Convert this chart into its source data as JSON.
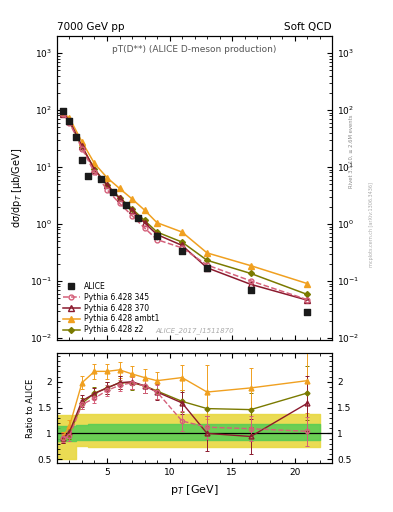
{
  "title_top_left": "7000 GeV pp",
  "title_top_right": "Soft QCD",
  "plot_title": "pT(D**) (ALICE D-meson production)",
  "watermark": "ALICE_2017_I1511870",
  "right_label1": "Rivet 3.1.10, ≥ 2.6M events",
  "right_label2": "mcplots.cern.ch [arXiv:1306.3436]",
  "xlabel": "p$_T$ [GeV]",
  "ylabel_main": "dσ/dp$_T$ [µb/GeV]",
  "ylabel_ratio": "Ratio to ALICE",
  "alice_x": [
    1.5,
    2.0,
    2.5,
    3.0,
    3.5,
    4.5,
    5.5,
    6.5,
    7.5,
    9.0,
    11.0,
    13.0,
    16.5,
    21.0
  ],
  "alice_y": [
    95.0,
    63.0,
    34.0,
    13.5,
    7.0,
    6.2,
    3.6,
    2.15,
    1.28,
    0.62,
    0.33,
    0.17,
    0.068,
    0.029
  ],
  "p345_x": [
    1.5,
    2.0,
    3.0,
    4.0,
    5.0,
    6.0,
    7.0,
    8.0,
    9.0,
    11.0,
    13.0,
    16.5,
    21.0
  ],
  "p345_y": [
    86.0,
    60.0,
    21.0,
    8.0,
    4.0,
    2.3,
    1.4,
    0.85,
    0.53,
    0.38,
    0.19,
    0.1,
    0.047
  ],
  "p370_x": [
    1.5,
    2.0,
    3.0,
    4.0,
    5.0,
    6.0,
    7.0,
    8.0,
    9.0,
    11.0,
    13.0,
    16.5,
    21.0
  ],
  "p370_y": [
    86.0,
    65.0,
    23.0,
    9.0,
    4.8,
    2.8,
    1.75,
    1.05,
    0.65,
    0.42,
    0.17,
    0.087,
    0.046
  ],
  "pambt1_x": [
    1.5,
    2.0,
    3.0,
    4.0,
    5.0,
    6.0,
    7.0,
    8.0,
    9.0,
    11.0,
    13.0,
    16.5,
    21.0
  ],
  "pambt1_y": [
    89.0,
    72.0,
    27.5,
    11.5,
    6.5,
    4.2,
    2.75,
    1.75,
    1.05,
    0.72,
    0.31,
    0.185,
    0.09
  ],
  "pz2_x": [
    1.5,
    2.0,
    3.0,
    4.0,
    5.0,
    6.0,
    7.0,
    8.0,
    9.0,
    11.0,
    13.0,
    16.5,
    21.0
  ],
  "pz2_y": [
    86.0,
    63.0,
    22.5,
    9.2,
    4.8,
    2.9,
    1.85,
    1.15,
    0.72,
    0.48,
    0.23,
    0.135,
    0.058
  ],
  "ratio_345_x": [
    1.5,
    2.0,
    3.0,
    4.0,
    5.0,
    6.0,
    7.0,
    8.0,
    9.0,
    11.0,
    13.0,
    16.5,
    21.0
  ],
  "ratio_345_y": [
    0.91,
    0.95,
    1.56,
    1.68,
    1.83,
    1.93,
    1.98,
    1.92,
    1.8,
    1.24,
    1.12,
    1.09,
    1.04
  ],
  "ratio_345_err": [
    0.08,
    0.09,
    0.09,
    0.1,
    0.11,
    0.11,
    0.12,
    0.13,
    0.14,
    0.19,
    0.22,
    0.24,
    0.28
  ],
  "ratio_370_x": [
    1.5,
    2.0,
    3.0,
    4.0,
    5.0,
    6.0,
    7.0,
    8.0,
    9.0,
    11.0,
    13.0,
    16.5,
    21.0
  ],
  "ratio_370_y": [
    0.91,
    1.03,
    1.63,
    1.77,
    1.88,
    1.98,
    2.0,
    1.92,
    1.8,
    1.59,
    1.0,
    0.94,
    1.58
  ],
  "ratio_370_err": [
    0.09,
    0.1,
    0.11,
    0.11,
    0.12,
    0.13,
    0.14,
    0.14,
    0.15,
    0.21,
    0.34,
    0.33,
    0.53
  ],
  "ratio_ambt1_x": [
    1.5,
    2.0,
    3.0,
    4.0,
    5.0,
    6.0,
    7.0,
    8.0,
    9.0,
    11.0,
    13.0,
    16.5,
    21.0
  ],
  "ratio_ambt1_y": [
    0.94,
    1.14,
    1.98,
    2.2,
    2.2,
    2.23,
    2.15,
    2.08,
    2.02,
    2.08,
    1.8,
    1.88,
    2.02
  ],
  "ratio_ambt1_err": [
    0.09,
    0.11,
    0.13,
    0.14,
    0.14,
    0.15,
    0.16,
    0.16,
    0.17,
    0.24,
    0.53,
    0.38,
    0.62
  ],
  "ratio_z2_x": [
    1.5,
    2.0,
    3.0,
    4.0,
    5.0,
    6.0,
    7.0,
    8.0,
    9.0,
    11.0,
    13.0,
    16.5,
    21.0
  ],
  "ratio_z2_y": [
    0.91,
    0.99,
    1.58,
    1.78,
    1.88,
    1.98,
    1.98,
    1.92,
    1.82,
    1.62,
    1.48,
    1.46,
    1.78
  ],
  "ratio_z2_err": [
    0.09,
    0.1,
    0.11,
    0.12,
    0.12,
    0.13,
    0.14,
    0.14,
    0.15,
    0.21,
    0.34,
    0.33,
    0.53
  ],
  "yellow_band_x": [
    1.0,
    2.5,
    3.5,
    8.5,
    12.0,
    22.0
  ],
  "yellow_band_lo": [
    0.5,
    0.75,
    0.73,
    0.73,
    0.73,
    0.73
  ],
  "yellow_band_hi": [
    1.35,
    1.38,
    1.38,
    1.38,
    1.38,
    1.38
  ],
  "green_band_x": [
    1.0,
    2.5,
    3.5,
    8.5,
    12.0,
    22.0
  ],
  "green_band_lo": [
    0.85,
    0.87,
    0.88,
    0.88,
    0.88,
    0.88
  ],
  "green_band_hi": [
    1.15,
    1.17,
    1.18,
    1.18,
    1.18,
    1.18
  ],
  "color_345": "#d4607a",
  "color_370": "#8b1a2e",
  "color_ambt1": "#f0a020",
  "color_z2": "#7a7a00",
  "color_alice": "#1a1a1a",
  "color_green_band": "#55cc55",
  "color_yellow_band": "#e8d840",
  "xlim": [
    1.0,
    23.0
  ],
  "ylim_main": [
    0.009,
    2000.0
  ],
  "ylim_ratio": [
    0.42,
    2.55
  ],
  "yticks_ratio": [
    0.5,
    1.0,
    1.5,
    2.0
  ],
  "ytick_labels_ratio": [
    "0.5",
    "1",
    "1.5",
    "2"
  ]
}
